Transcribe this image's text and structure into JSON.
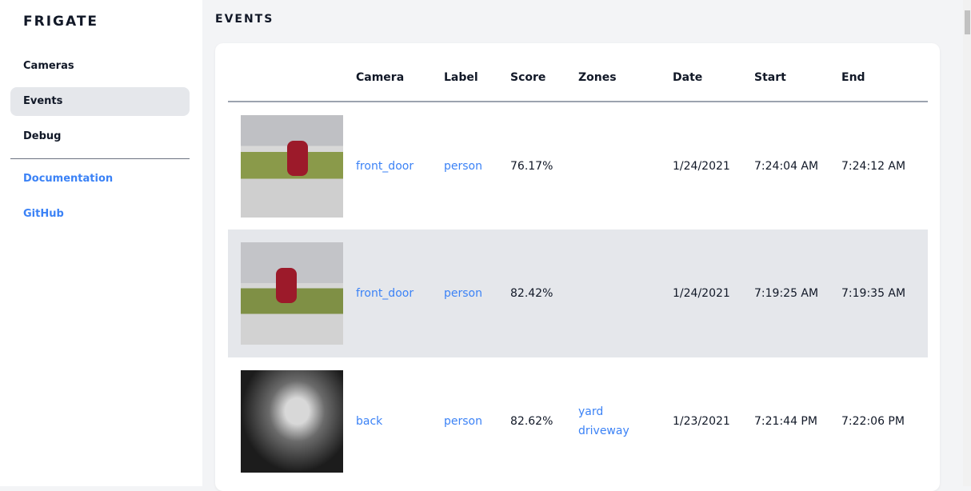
{
  "app": {
    "title": "FRIGATE"
  },
  "sidebar": {
    "items": [
      {
        "label": "Cameras"
      },
      {
        "label": "Events",
        "active": true
      },
      {
        "label": "Debug"
      }
    ],
    "links": [
      {
        "label": "Documentation"
      },
      {
        "label": "GitHub"
      }
    ]
  },
  "page": {
    "title": "EVENTS"
  },
  "table": {
    "headers": [
      "",
      "Camera",
      "Label",
      "Score",
      "Zones",
      "Date",
      "Start",
      "End"
    ],
    "rows": [
      {
        "camera": "front_door",
        "label": "person",
        "score": "76.17%",
        "zones": [],
        "date": "1/24/2021",
        "start": "7:24:04 AM",
        "end": "7:24:12 AM"
      },
      {
        "camera": "front_door",
        "label": "person",
        "score": "82.42%",
        "zones": [],
        "date": "1/24/2021",
        "start": "7:19:25 AM",
        "end": "7:19:35 AM"
      },
      {
        "camera": "back",
        "label": "person",
        "score": "82.62%",
        "zones": [
          "yard",
          "driveway"
        ],
        "date": "1/23/2021",
        "start": "7:21:44 PM",
        "end": "7:22:06 PM"
      }
    ]
  },
  "colors": {
    "link": "#3b82f6",
    "active_bg": "#e5e7eb",
    "page_bg": "#f3f4f6"
  }
}
